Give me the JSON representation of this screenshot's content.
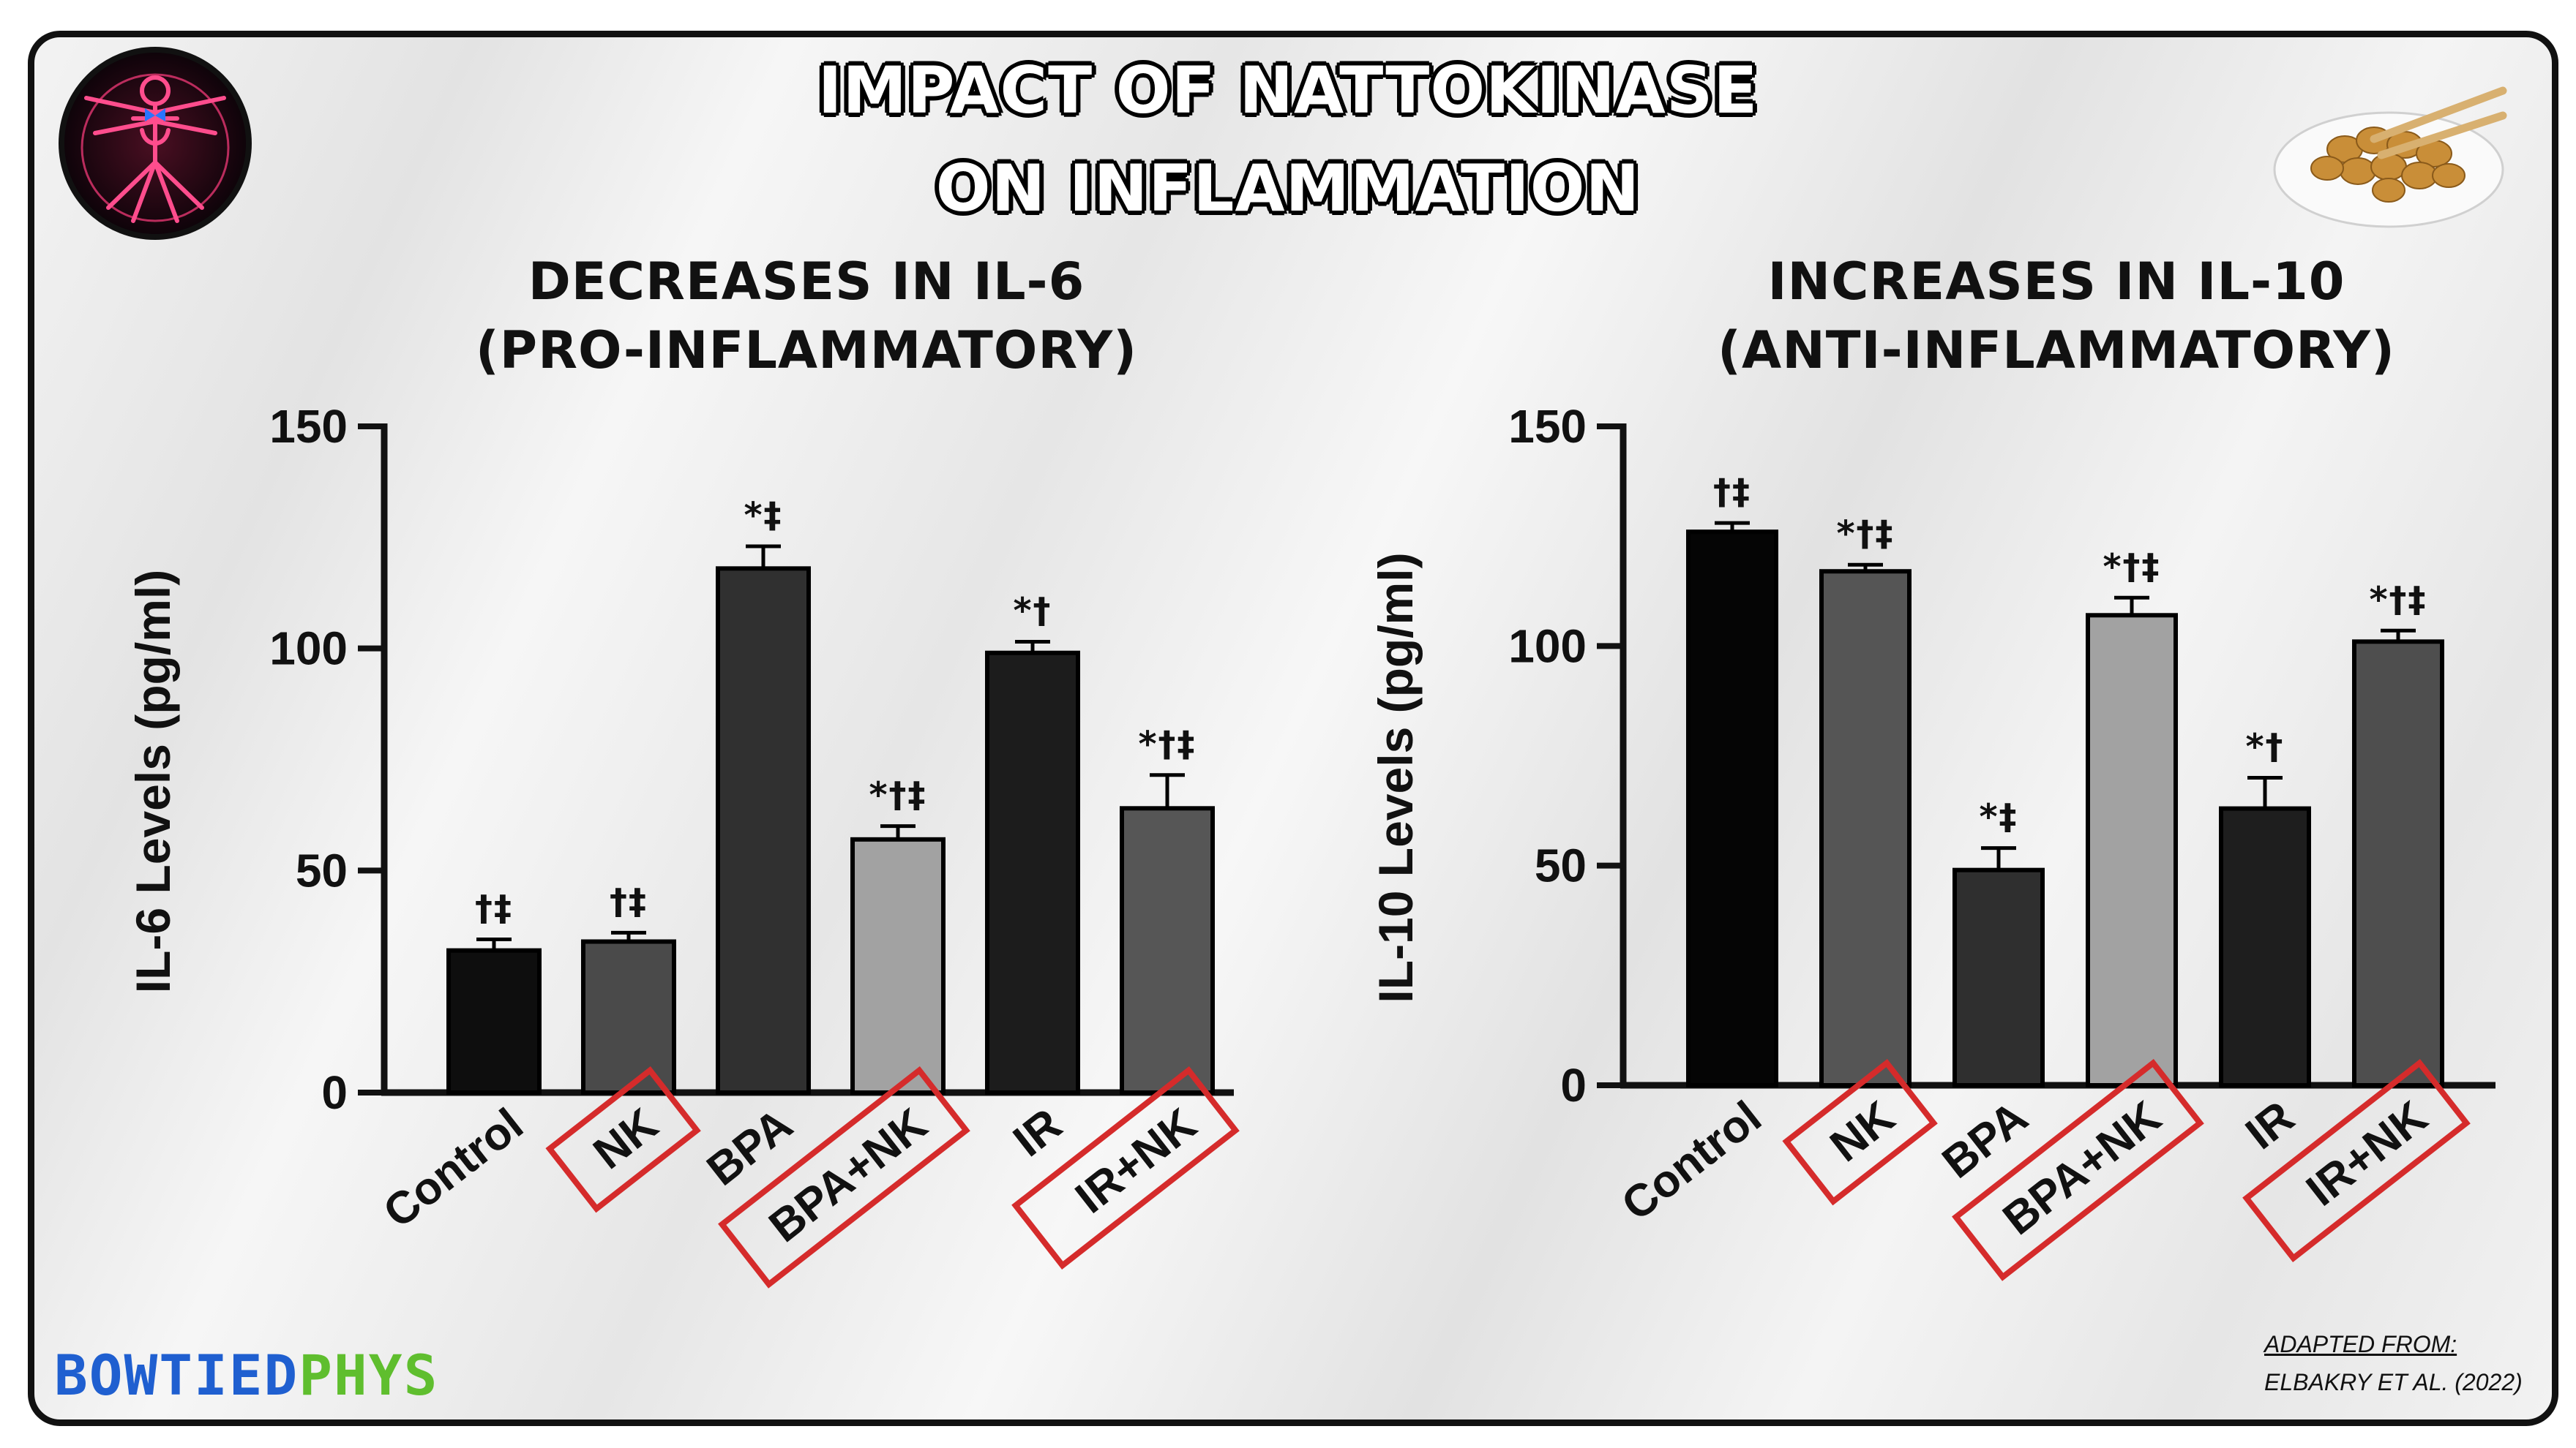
{
  "title": {
    "line1": "IMPACT OF NATTOKINASE",
    "line2": "ON INFLAMMATION"
  },
  "panels": {
    "left": {
      "title_line1": "DECREASES IN IL-6",
      "title_line2": "(PRO-INFLAMMATORY)"
    },
    "right": {
      "title_line1": "INCREASES IN IL-10",
      "title_line2": "(ANTI-INFLAMMATORY)"
    }
  },
  "brand": {
    "part1": "BOWTIED",
    "part2": "PHYS"
  },
  "credit": {
    "line1": "ADAPTED FROM:",
    "line2": "ELBAKRY ET AL. (2022)"
  },
  "colors": {
    "highlight_box": "#d52b2b",
    "brand_blue": "#1f5fd0",
    "brand_green": "#5fbe2e"
  },
  "icons": {
    "top_left": "anatomy-figure-icon",
    "top_right": "natto-bowl-icon"
  },
  "chart_data": [
    {
      "type": "bar",
      "title": "DECREASES IN IL-6 (PRO-INFLAMMATORY)",
      "ylabel": "IL-6 Levels (pg/ml)",
      "xlabel": "",
      "ylim": [
        0,
        150
      ],
      "yticks": [
        0,
        50,
        100,
        150
      ],
      "categories": [
        "Control",
        "NK",
        "BPA",
        "BPA+NK",
        "IR",
        "IR+NK"
      ],
      "values": [
        32,
        34,
        118,
        57,
        99,
        64
      ],
      "errors": [
        2.5,
        2,
        5,
        3,
        2.5,
        7.5
      ],
      "annotations": [
        "†‡",
        "†‡",
        "*‡",
        "*†‡",
        "*†",
        "*†‡"
      ],
      "bar_colors": [
        "#0e0e0e",
        "#4a4a4a",
        "#303030",
        "#a2a2a2",
        "#1c1c1c",
        "#565656"
      ],
      "highlighted": [
        "NK",
        "BPA+NK",
        "IR+NK"
      ]
    },
    {
      "type": "bar",
      "title": "INCREASES IN IL-10 (ANTI-INFLAMMATORY)",
      "ylabel": "IL-10 Levels (pg/ml)",
      "xlabel": "",
      "ylim": [
        0,
        150
      ],
      "yticks": [
        0,
        50,
        100,
        150
      ],
      "categories": [
        "Control",
        "NK",
        "BPA",
        "BPA+NK",
        "IR",
        "IR+NK"
      ],
      "values": [
        126,
        117,
        49,
        107,
        63,
        101
      ],
      "errors": [
        2,
        1.5,
        5,
        4,
        7,
        2.5
      ],
      "annotations": [
        "†‡",
        "*†‡",
        "*‡",
        "*†‡",
        "*†",
        "*†‡"
      ],
      "bar_colors": [
        "#050505",
        "#555555",
        "#2f2f2f",
        "#a2a2a2",
        "#1e1e1e",
        "#4e4e4e"
      ],
      "highlighted": [
        "NK",
        "BPA+NK",
        "IR+NK"
      ]
    }
  ]
}
